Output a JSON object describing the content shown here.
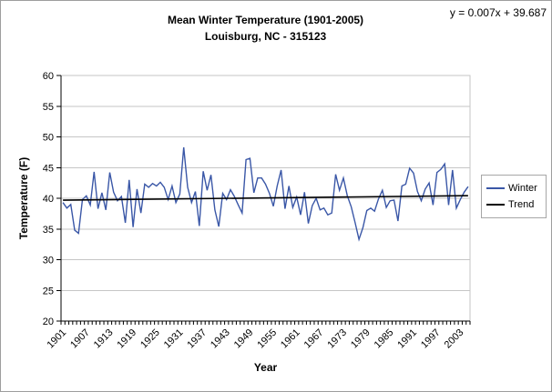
{
  "header": {
    "title_line1": "Mean Winter Temperature (1901-2005)",
    "title_line2": "Louisburg, NC - 315123",
    "equation": "y = 0.007x + 39.687"
  },
  "legend": {
    "position": "right",
    "items": [
      {
        "label": "Winter",
        "color": "#3a57a7",
        "style": "line"
      },
      {
        "label": "Trend",
        "color": "#000000",
        "style": "line"
      }
    ]
  },
  "chart_data": {
    "type": "line",
    "title": "Mean Winter Temperature (1901-2005)",
    "subtitle": "Louisburg, NC - 315123",
    "xlabel": "Year",
    "ylabel": "Temperature (F)",
    "ylim": [
      20,
      60
    ],
    "y_ticks": [
      20,
      25,
      30,
      35,
      40,
      45,
      50,
      55,
      60
    ],
    "x_tick_labels": [
      "1901",
      "1907",
      "1913",
      "1919",
      "1925",
      "1931",
      "1937",
      "1943",
      "1949",
      "1955",
      "1961",
      "1967",
      "1973",
      "1979",
      "1985",
      "1991",
      "1997",
      "2003"
    ],
    "x_tick_step": 6,
    "year_start": 1901,
    "year_end": 2005,
    "grid": "horizontal",
    "legend_position": "right",
    "series": [
      {
        "name": "Winter",
        "color": "#3a57a7",
        "values": [
          39.3,
          38.4,
          39.0,
          34.8,
          34.3,
          39.8,
          40.4,
          38.9,
          44.3,
          38.3,
          40.9,
          38.1,
          44.2,
          41.0,
          39.6,
          40.3,
          36.0,
          43.0,
          35.3,
          41.5,
          37.6,
          42.3,
          41.8,
          42.4,
          42.0,
          42.6,
          41.8,
          39.8,
          42.0,
          39.3,
          40.7,
          48.3,
          41.8,
          39.3,
          41.1,
          35.5,
          44.4,
          41.3,
          43.8,
          38.1,
          35.4,
          40.8,
          39.8,
          41.4,
          40.3,
          38.9,
          37.6,
          46.3,
          46.5,
          40.9,
          43.3,
          43.3,
          42.3,
          40.8,
          38.7,
          42.0,
          44.6,
          38.3,
          42.0,
          38.5,
          40.2,
          37.3,
          41.0,
          35.9,
          38.8,
          40.0,
          38.1,
          38.4,
          37.3,
          37.6,
          43.9,
          41.3,
          43.3,
          40.4,
          38.6,
          36.0,
          33.3,
          35.2,
          38.0,
          38.4,
          37.9,
          39.9,
          41.3,
          38.5,
          39.6,
          39.7,
          36.3,
          42.0,
          42.3,
          44.9,
          44.1,
          41.1,
          39.6,
          41.5,
          42.5,
          38.9,
          44.2,
          44.7,
          45.6,
          38.9,
          44.6,
          38.4,
          39.8,
          41.0,
          41.9
        ]
      }
    ],
    "trend": {
      "name": "Trend",
      "color": "#000000",
      "slope": 0.007,
      "intercept": 39.687,
      "equation": "y = 0.007x + 39.687"
    }
  },
  "style": {
    "gridline_color": "#c6c6c6",
    "axis_color": "#000000",
    "plot_border_color": "#c6c6c6",
    "background": "#ffffff"
  }
}
